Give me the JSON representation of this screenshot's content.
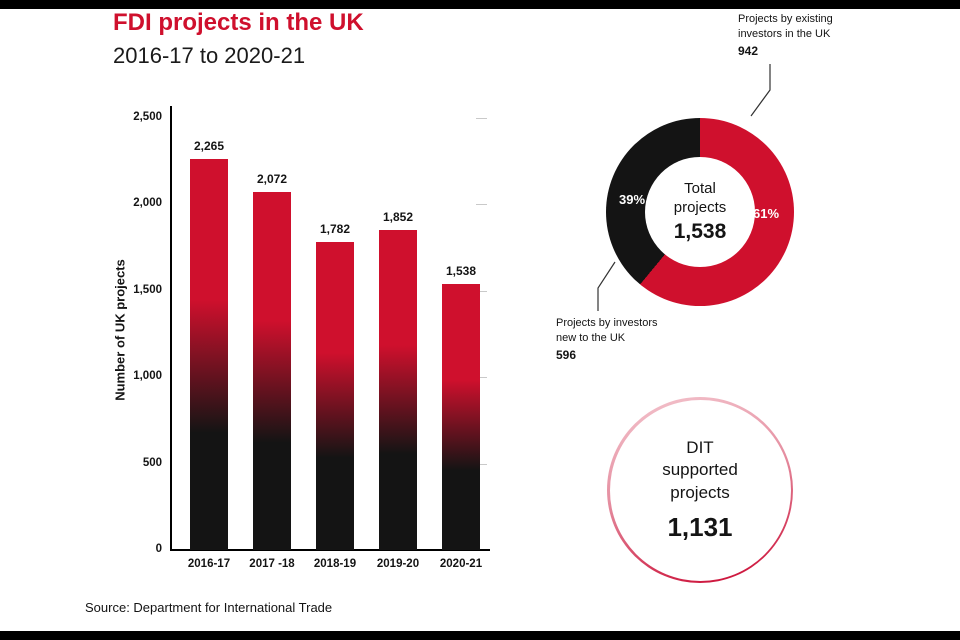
{
  "header": {
    "title": "FDI projects in the UK",
    "subtitle": "2016-17 to 2020-21"
  },
  "colors": {
    "red": "#cf102d",
    "ink": "#141414"
  },
  "chart_data": [
    {
      "type": "bar",
      "title": "FDI projects in the UK 2016-17 to 2020-21",
      "ylabel": "Number of UK projects",
      "xlabel": "",
      "categories": [
        "2016-17",
        "2017 -18",
        "2018-19",
        "2019-20",
        "2020-21"
      ],
      "values": [
        2265,
        2072,
        1782,
        1852,
        1538
      ],
      "value_labels": [
        "2,265",
        "2,072",
        "1,782",
        "1,852",
        "1,538"
      ],
      "ylim": [
        0,
        2500
      ],
      "yticks": [
        {
          "value": 0,
          "label": "0"
        },
        {
          "value": 500,
          "label": "500"
        },
        {
          "value": 1000,
          "label": "1,000"
        },
        {
          "value": 1500,
          "label": "1,500"
        },
        {
          "value": 2000,
          "label": "2,000"
        },
        {
          "value": 2500,
          "label": "2,500"
        }
      ],
      "grid": false,
      "bar_style": "gradient red (top) to black (bottom)"
    },
    {
      "type": "pie",
      "subtype": "donut",
      "center_label": "Total projects",
      "center_value": "1,538",
      "slices": [
        {
          "label": "Projects by existing investors in the UK",
          "value": "942",
          "pct": "61%",
          "color": "#cf102d"
        },
        {
          "label": "Projects by investors new to the UK",
          "value": "596",
          "pct": "39%",
          "color": "#141414"
        }
      ],
      "legend_position": "callouts"
    }
  ],
  "dit_circle": {
    "label": "DIT supported projects",
    "value": "1,131"
  },
  "footer": {
    "source": "Source: Department for International Trade"
  }
}
